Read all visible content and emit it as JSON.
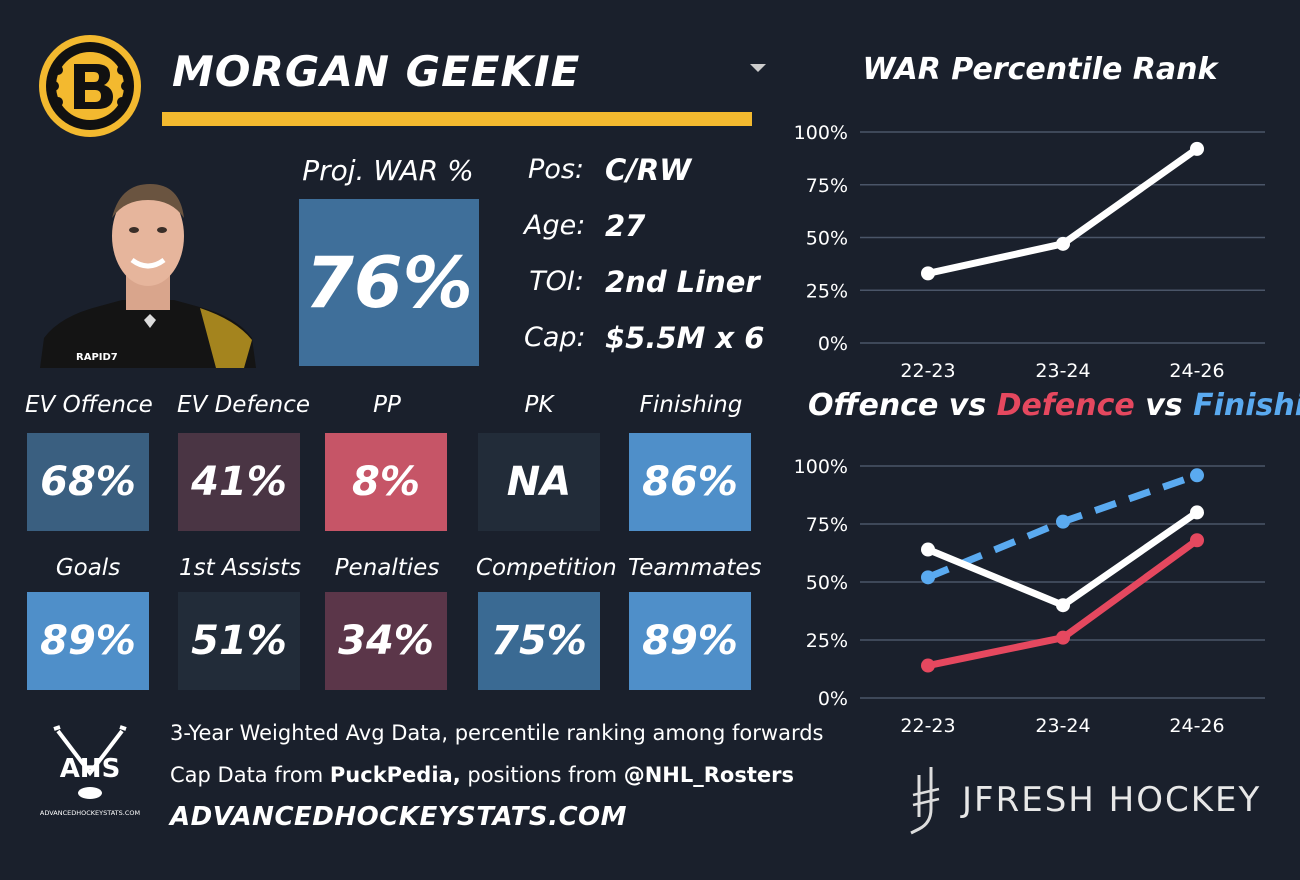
{
  "player": {
    "name": "MORGAN GEEKIE",
    "proj_war_label": "Proj. WAR %",
    "proj_war_value": "76%",
    "info": [
      {
        "label": "Pos:",
        "value": "C/RW"
      },
      {
        "label": "Age:",
        "value": "27"
      },
      {
        "label": "TOI:",
        "value": "2nd Liner"
      },
      {
        "label": "Cap:",
        "value": "$5.5M x 6"
      }
    ],
    "jersey_text": "RAPID7"
  },
  "tiles_row1": [
    {
      "label": "EV Offence",
      "value": "68%",
      "color": "#3a5f80"
    },
    {
      "label": "EV Defence",
      "value": "41%",
      "color": "#4a3544"
    },
    {
      "label": "PP",
      "value": "8%",
      "color": "#c65567"
    },
    {
      "label": "PK",
      "value": "NA",
      "color": "#222c39"
    },
    {
      "label": "Finishing",
      "value": "86%",
      "color": "#4f8fc9"
    }
  ],
  "tiles_row2": [
    {
      "label": "Goals",
      "value": "89%",
      "color": "#4f8fc9"
    },
    {
      "label": "1st Assists",
      "value": "51%",
      "color": "#222c39"
    },
    {
      "label": "Penalties",
      "value": "34%",
      "color": "#5b3649"
    },
    {
      "label": "Competition",
      "value": "75%",
      "color": "#3a6a93"
    },
    {
      "label": "Teammates",
      "value": "89%",
      "color": "#4f8fc9"
    }
  ],
  "footer": {
    "line1": "3-Year Weighted Avg Data, percentile ranking among forwards",
    "line2_prefix": "Cap Data from ",
    "line2_bold1": "PuckPedia,",
    "line2_mid": " positions from ",
    "line2_bold2": "@NHL_Rosters",
    "site": "ADVANCEDHOCKEYSTATS.COM",
    "ahs_text": "AHS",
    "ahs_small": "ADVANCEDHOCKEYSTATS.COM",
    "brand": "JFRESH HOCKEY"
  },
  "chart_data": [
    {
      "type": "line",
      "title": "WAR Percentile Rank",
      "categories": [
        "22-23",
        "23-24",
        "24-26"
      ],
      "y_ticks": [
        "0%",
        "25%",
        "50%",
        "75%",
        "100%"
      ],
      "ylim": [
        0,
        100
      ],
      "grid": true,
      "series": [
        {
          "values": [
            33,
            47,
            92
          ],
          "color": "#ffffff",
          "dash": false
        }
      ]
    },
    {
      "type": "line",
      "title_parts": [
        {
          "text": "Offence",
          "color": "#ffffff"
        },
        {
          "text": " vs ",
          "color": "#ffffff"
        },
        {
          "text": "Defence",
          "color": "#e5485f"
        },
        {
          "text": " vs ",
          "color": "#ffffff"
        },
        {
          "text": "Finishing",
          "color": "#5aaaf0"
        }
      ],
      "categories": [
        "22-23",
        "23-24",
        "24-26"
      ],
      "y_ticks": [
        "0%",
        "25%",
        "50%",
        "75%",
        "100%"
      ],
      "ylim": [
        0,
        100
      ],
      "grid": true,
      "series": [
        {
          "name": "Finishing",
          "values": [
            52,
            76,
            96
          ],
          "color": "#5aaaf0",
          "dash": true
        },
        {
          "name": "Offence",
          "values": [
            64,
            40,
            80
          ],
          "color": "#ffffff",
          "dash": false
        },
        {
          "name": "Defence",
          "values": [
            14,
            26,
            68
          ],
          "color": "#e5485f",
          "dash": false
        }
      ]
    }
  ],
  "colors": {
    "background": "#1a202c",
    "gold": "#f3b92f",
    "proj_box": "#3f6f9a",
    "grid": "#4a5568"
  }
}
